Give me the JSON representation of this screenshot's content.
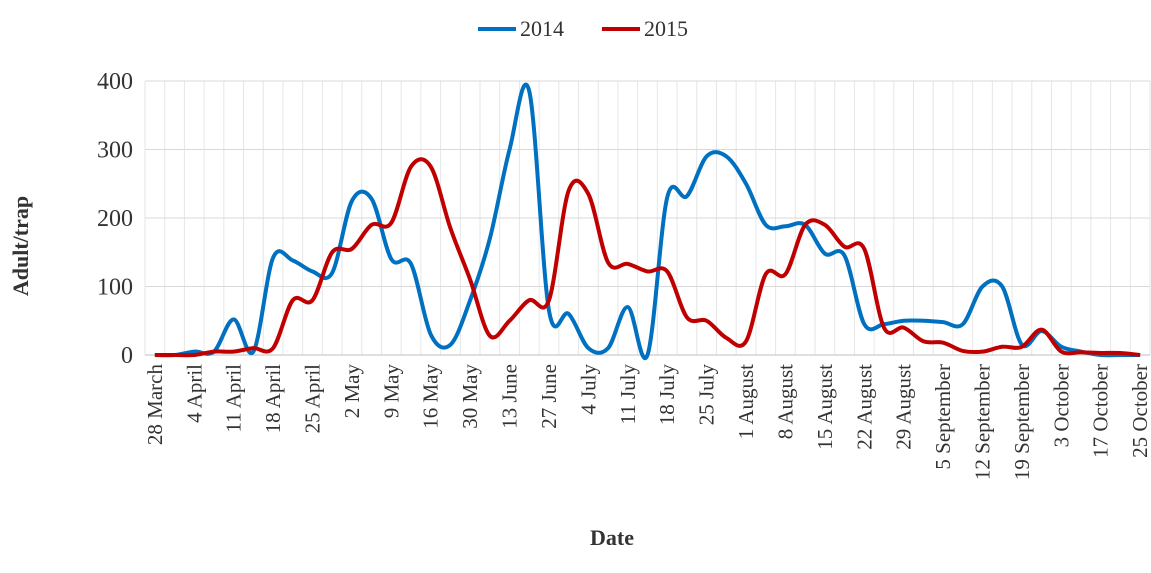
{
  "chart_data": {
    "type": "line",
    "x_label": "Date",
    "y_label": "Adult/trap",
    "categories": [
      "28 March",
      null,
      "4 April",
      null,
      "11 April",
      null,
      "18 April",
      null,
      "25 April",
      null,
      "2 May",
      null,
      "9 May",
      null,
      "16 May",
      null,
      "30 May",
      null,
      "13 June",
      null,
      "27 June",
      null,
      "4 July",
      null,
      "11 July",
      null,
      "18 July",
      null,
      "25 July",
      null,
      "1 August",
      null,
      "8 August",
      null,
      "15 August",
      null,
      "22 August",
      null,
      "29 August",
      null,
      "5 September",
      null,
      "12 September",
      null,
      "19 September",
      null,
      "3 October",
      null,
      "17 October",
      null,
      "25 October"
    ],
    "series": [
      {
        "name": "2014",
        "color": "#0070c0",
        "values": [
          0,
          0,
          5,
          5,
          52,
          5,
          142,
          138,
          122,
          120,
          225,
          228,
          140,
          133,
          30,
          15,
          80,
          170,
          300,
          385,
          65,
          60,
          10,
          10,
          70,
          0,
          230,
          232,
          290,
          290,
          250,
          190,
          188,
          190,
          148,
          145,
          45,
          45,
          50,
          50,
          48,
          45,
          100,
          100,
          15,
          35,
          12,
          5,
          0,
          0,
          0
        ]
      },
      {
        "name": "2015",
        "color": "#c00000",
        "values": [
          0,
          0,
          0,
          5,
          5,
          10,
          10,
          80,
          80,
          150,
          155,
          190,
          193,
          275,
          275,
          185,
          110,
          28,
          50,
          80,
          80,
          240,
          235,
          135,
          133,
          122,
          122,
          55,
          50,
          25,
          20,
          118,
          118,
          190,
          190,
          158,
          155,
          40,
          40,
          20,
          18,
          6,
          5,
          12,
          12,
          37,
          5,
          4,
          3,
          3,
          0
        ]
      }
    ],
    "ylim": [
      0,
      400
    ],
    "yticks": [
      0,
      100,
      200,
      300,
      400
    ],
    "grid": true,
    "legend": "top"
  }
}
